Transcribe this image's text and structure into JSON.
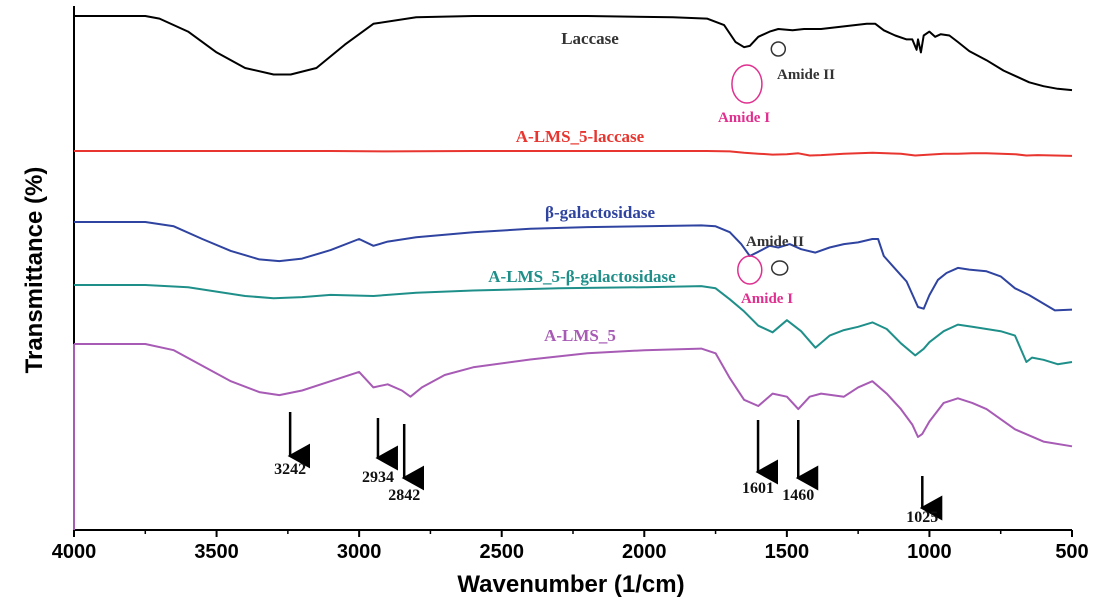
{
  "chart_data": {
    "type": "line",
    "title": "",
    "xlabel": "Wavenumber (1/cm)",
    "ylabel": "Transmittance (%)",
    "xlim": [
      4000,
      500
    ],
    "x_reversed": true,
    "x_ticks": [
      "4000",
      "3500",
      "3000",
      "2500",
      "2000",
      "1500",
      "1000",
      "500"
    ],
    "y_ticks_shown": false,
    "grid": false,
    "legend": "inline labels",
    "series": [
      {
        "name": "Laccase",
        "color": "#000000",
        "points": [
          [
            4000,
            100
          ],
          [
            3750,
            100
          ],
          [
            3700,
            98
          ],
          [
            3600,
            88
          ],
          [
            3500,
            72
          ],
          [
            3400,
            60
          ],
          [
            3300,
            55
          ],
          [
            3240,
            55
          ],
          [
            3150,
            60
          ],
          [
            3050,
            78
          ],
          [
            2950,
            94
          ],
          [
            2800,
            99
          ],
          [
            2600,
            100
          ],
          [
            2200,
            100
          ],
          [
            1900,
            99
          ],
          [
            1780,
            98
          ],
          [
            1720,
            93
          ],
          [
            1680,
            80
          ],
          [
            1650,
            76
          ],
          [
            1630,
            77
          ],
          [
            1600,
            84
          ],
          [
            1560,
            88
          ],
          [
            1530,
            90
          ],
          [
            1480,
            89
          ],
          [
            1440,
            90
          ],
          [
            1380,
            90
          ],
          [
            1300,
            92
          ],
          [
            1220,
            94
          ],
          [
            1190,
            94
          ],
          [
            1160,
            89
          ],
          [
            1120,
            85
          ],
          [
            1080,
            82
          ],
          [
            1060,
            82
          ],
          [
            1045,
            74
          ],
          [
            1040,
            82
          ],
          [
            1030,
            72
          ],
          [
            1020,
            85
          ],
          [
            1000,
            88
          ],
          [
            980,
            84
          ],
          [
            960,
            86
          ],
          [
            930,
            85
          ],
          [
            900,
            80
          ],
          [
            860,
            73
          ],
          [
            800,
            66
          ],
          [
            740,
            58
          ],
          [
            700,
            54
          ],
          [
            650,
            49
          ],
          [
            600,
            46
          ],
          [
            550,
            44
          ],
          [
            500,
            43
          ]
        ]
      },
      {
        "name": "A-LMS_5-laccase",
        "color": "#e8352f",
        "points": [
          [
            4000,
            0
          ],
          [
            3500,
            0
          ],
          [
            3100,
            0
          ],
          [
            2900,
            -1
          ],
          [
            2600,
            0
          ],
          [
            2200,
            0
          ],
          [
            1900,
            0
          ],
          [
            1780,
            0
          ],
          [
            1700,
            -1
          ],
          [
            1650,
            -4
          ],
          [
            1600,
            -6
          ],
          [
            1550,
            -8
          ],
          [
            1500,
            -7
          ],
          [
            1460,
            -5
          ],
          [
            1420,
            -10
          ],
          [
            1380,
            -9
          ],
          [
            1300,
            -6
          ],
          [
            1200,
            -4
          ],
          [
            1100,
            -6
          ],
          [
            1050,
            -10
          ],
          [
            1000,
            -8
          ],
          [
            950,
            -6
          ],
          [
            900,
            -6
          ],
          [
            850,
            -5
          ],
          [
            800,
            -5
          ],
          [
            750,
            -6
          ],
          [
            700,
            -7
          ],
          [
            660,
            -10
          ],
          [
            620,
            -9
          ],
          [
            500,
            -11
          ]
        ]
      },
      {
        "name": "β-galactosidase",
        "color": "#2f43a0",
        "points": [
          [
            4000,
            0
          ],
          [
            3750,
            0
          ],
          [
            3650,
            -5
          ],
          [
            3550,
            -20
          ],
          [
            3450,
            -34
          ],
          [
            3350,
            -44
          ],
          [
            3280,
            -46
          ],
          [
            3200,
            -43
          ],
          [
            3100,
            -33
          ],
          [
            3000,
            -20
          ],
          [
            2950,
            -28
          ],
          [
            2900,
            -23
          ],
          [
            2800,
            -18
          ],
          [
            2600,
            -12
          ],
          [
            2400,
            -8
          ],
          [
            2200,
            -6
          ],
          [
            2000,
            -5
          ],
          [
            1800,
            -4
          ],
          [
            1750,
            -5
          ],
          [
            1700,
            -12
          ],
          [
            1660,
            -26
          ],
          [
            1630,
            -40
          ],
          [
            1600,
            -35
          ],
          [
            1560,
            -28
          ],
          [
            1530,
            -30
          ],
          [
            1490,
            -26
          ],
          [
            1450,
            -32
          ],
          [
            1400,
            -36
          ],
          [
            1350,
            -30
          ],
          [
            1300,
            -26
          ],
          [
            1250,
            -24
          ],
          [
            1200,
            -20
          ],
          [
            1180,
            -20
          ],
          [
            1160,
            -40
          ],
          [
            1120,
            -55
          ],
          [
            1080,
            -70
          ],
          [
            1040,
            -100
          ],
          [
            1020,
            -102
          ],
          [
            1000,
            -86
          ],
          [
            970,
            -68
          ],
          [
            940,
            -60
          ],
          [
            900,
            -54
          ],
          [
            860,
            -56
          ],
          [
            800,
            -58
          ],
          [
            750,
            -64
          ],
          [
            700,
            -78
          ],
          [
            650,
            -86
          ],
          [
            600,
            -96
          ],
          [
            560,
            -104
          ],
          [
            500,
            -103
          ]
        ]
      },
      {
        "name": "A-LMS_5-β-galactosidase",
        "color": "#1f8f8a",
        "points": [
          [
            4000,
            0
          ],
          [
            3750,
            0
          ],
          [
            3600,
            -2
          ],
          [
            3500,
            -6
          ],
          [
            3400,
            -10
          ],
          [
            3300,
            -12
          ],
          [
            3200,
            -11
          ],
          [
            3100,
            -9
          ],
          [
            2950,
            -10
          ],
          [
            2800,
            -7
          ],
          [
            2600,
            -5
          ],
          [
            2300,
            -3
          ],
          [
            2000,
            -2
          ],
          [
            1800,
            -1
          ],
          [
            1750,
            -3
          ],
          [
            1700,
            -13
          ],
          [
            1650,
            -24
          ],
          [
            1600,
            -37
          ],
          [
            1550,
            -43
          ],
          [
            1500,
            -32
          ],
          [
            1450,
            -42
          ],
          [
            1400,
            -57
          ],
          [
            1350,
            -46
          ],
          [
            1300,
            -41
          ],
          [
            1250,
            -38
          ],
          [
            1200,
            -34
          ],
          [
            1150,
            -40
          ],
          [
            1100,
            -53
          ],
          [
            1050,
            -64
          ],
          [
            1020,
            -58
          ],
          [
            1000,
            -52
          ],
          [
            950,
            -42
          ],
          [
            900,
            -36
          ],
          [
            850,
            -38
          ],
          [
            800,
            -40
          ],
          [
            750,
            -42
          ],
          [
            700,
            -46
          ],
          [
            660,
            -70
          ],
          [
            640,
            -66
          ],
          [
            600,
            -68
          ],
          [
            550,
            -72
          ],
          [
            500,
            -70
          ]
        ]
      },
      {
        "name": "A-LMS_5",
        "color": "#a75bb5",
        "points": [
          [
            4000,
            0
          ],
          [
            3750,
            0
          ],
          [
            3650,
            -4
          ],
          [
            3550,
            -14
          ],
          [
            3450,
            -24
          ],
          [
            3350,
            -31
          ],
          [
            3280,
            -33
          ],
          [
            3200,
            -30
          ],
          [
            3100,
            -24
          ],
          [
            3000,
            -18
          ],
          [
            2950,
            -28
          ],
          [
            2900,
            -26
          ],
          [
            2850,
            -30
          ],
          [
            2820,
            -34
          ],
          [
            2780,
            -28
          ],
          [
            2700,
            -20
          ],
          [
            2600,
            -15
          ],
          [
            2400,
            -10
          ],
          [
            2200,
            -6
          ],
          [
            2000,
            -4
          ],
          [
            1800,
            -3
          ],
          [
            1750,
            -6
          ],
          [
            1700,
            -22
          ],
          [
            1650,
            -36
          ],
          [
            1600,
            -40
          ],
          [
            1550,
            -32
          ],
          [
            1500,
            -34
          ],
          [
            1460,
            -42
          ],
          [
            1420,
            -34
          ],
          [
            1380,
            -32
          ],
          [
            1300,
            -34
          ],
          [
            1250,
            -28
          ],
          [
            1200,
            -24
          ],
          [
            1150,
            -32
          ],
          [
            1100,
            -42
          ],
          [
            1060,
            -52
          ],
          [
            1040,
            -60
          ],
          [
            1025,
            -58
          ],
          [
            1000,
            -50
          ],
          [
            950,
            -38
          ],
          [
            900,
            -35
          ],
          [
            850,
            -38
          ],
          [
            800,
            -42
          ],
          [
            700,
            -55
          ],
          [
            600,
            -63
          ],
          [
            500,
            -66
          ]
        ]
      }
    ],
    "annotations": {
      "series_labels": [
        "Laccase",
        "A-LMS_5-laccase",
        "β-galactosidase",
        "A-LMS_5-β-galactosidase",
        "A-LMS_5"
      ],
      "amide_labels": [
        "Amide I",
        "Amide II",
        "Amide II",
        "Amide I"
      ],
      "peaks": [
        {
          "wavenumber": 3242,
          "label": "3242"
        },
        {
          "wavenumber": 2934,
          "label": "2934"
        },
        {
          "wavenumber": 2842,
          "label": "2842"
        },
        {
          "wavenumber": 1601,
          "label": "1601"
        },
        {
          "wavenumber": 1460,
          "label": "1460"
        },
        {
          "wavenumber": 1025,
          "label": "1025"
        }
      ]
    }
  }
}
